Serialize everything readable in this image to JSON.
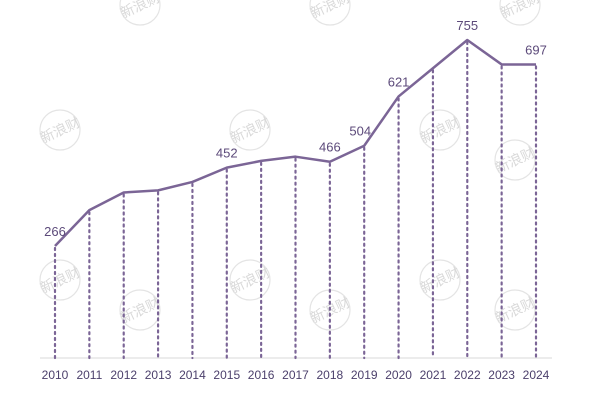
{
  "chart_data": {
    "type": "line",
    "title": "",
    "xlabel": "",
    "ylabel": "",
    "categories": [
      "2010",
      "2011",
      "2012",
      "2013",
      "2014",
      "2015",
      "2016",
      "2017",
      "2018",
      "2019",
      "2020",
      "2021",
      "2022",
      "2023",
      "2024"
    ],
    "series": [
      {
        "values": [
          266,
          351,
          393,
          398,
          418,
          452,
          468,
          478,
          466,
          504,
          621,
          688,
          755,
          697,
          697
        ],
        "color": "#7b6596"
      }
    ],
    "data_labels": {
      "2010": 266,
      "2015": 452,
      "2018": 466,
      "2019": 504,
      "2020": 621,
      "2022": 755,
      "2024": 697
    },
    "ylim": [
      0,
      850
    ],
    "grid": false,
    "drop_lines": true,
    "drop_line_style": "dotted",
    "baseline_color": "#d9d9d9",
    "legend": "none"
  },
  "watermark": {
    "text": "新浪财"
  }
}
